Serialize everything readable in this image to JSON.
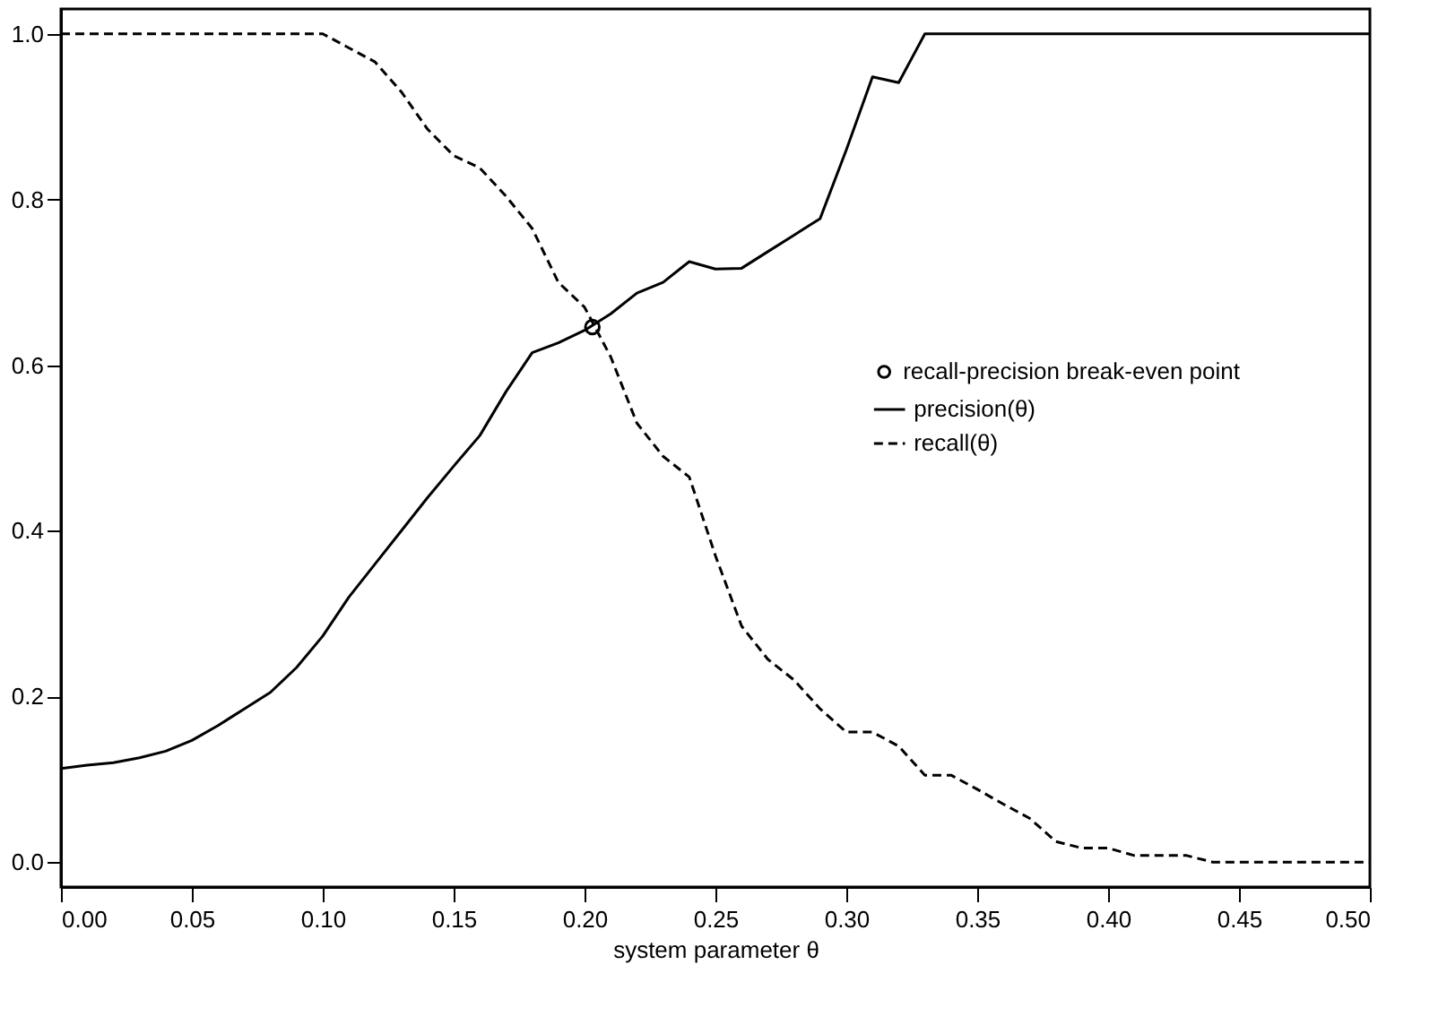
{
  "chart_data": {
    "type": "line",
    "xlabel": "system parameter θ",
    "xlim": [
      0,
      0.5
    ],
    "ylim": [
      -0.03,
      1.03
    ],
    "xticks": [
      {
        "value": 0,
        "label": "0.00"
      },
      {
        "value": 0.05,
        "label": "0.05"
      },
      {
        "value": 0.1,
        "label": "0.10"
      },
      {
        "value": 0.15,
        "label": "0.15"
      },
      {
        "value": 0.2,
        "label": "0.20"
      },
      {
        "value": 0.25,
        "label": "0.25"
      },
      {
        "value": 0.3,
        "label": "0.30"
      },
      {
        "value": 0.35,
        "label": "0.35"
      },
      {
        "value": 0.4,
        "label": "0.40"
      },
      {
        "value": 0.45,
        "label": "0.45"
      },
      {
        "value": 0.5,
        "label": "0.50"
      }
    ],
    "yticks": [
      {
        "value": 0,
        "label": "0.0"
      },
      {
        "value": 0.2,
        "label": "0.2"
      },
      {
        "value": 0.4,
        "label": "0.4"
      },
      {
        "value": 0.6,
        "label": "0.6"
      },
      {
        "value": 0.8,
        "label": "0.8"
      },
      {
        "value": 1,
        "label": "1.0"
      }
    ],
    "grid": false,
    "legend": "right",
    "marker": "none",
    "series": [
      {
        "name": "recall-precision break-even point",
        "type": "scatter",
        "marker": "circle",
        "color": "#000000",
        "x": [
          0.203
        ],
        "values": [
          0.646
        ]
      },
      {
        "name": "precision(θ)",
        "line_style": "solid",
        "color": "#000000",
        "x": [
          0,
          0.01,
          0.02,
          0.03,
          0.04,
          0.05,
          0.06,
          0.07,
          0.08,
          0.09,
          0.1,
          0.11,
          0.12,
          0.13,
          0.14,
          0.15,
          0.16,
          0.17,
          0.18,
          0.19,
          0.2,
          0.21,
          0.22,
          0.23,
          0.24,
          0.25,
          0.26,
          0.27,
          0.28,
          0.29,
          0.3,
          0.31,
          0.32,
          0.33,
          0.5
        ],
        "values": [
          0.113,
          0.117,
          0.12,
          0.126,
          0.134,
          0.147,
          0.165,
          0.185,
          0.205,
          0.235,
          0.273,
          0.32,
          0.36,
          0.4,
          0.44,
          0.478,
          0.515,
          0.568,
          0.615,
          0.627,
          0.642,
          0.662,
          0.687,
          0.7,
          0.725,
          0.716,
          0.717,
          0.737,
          0.757,
          0.777,
          0.86,
          0.948,
          0.941,
          1.0,
          1.0
        ]
      },
      {
        "name": "recall(θ)",
        "line_style": "dashed",
        "color": "#000000",
        "x": [
          0,
          0.1,
          0.11,
          0.12,
          0.13,
          0.14,
          0.15,
          0.16,
          0.17,
          0.18,
          0.19,
          0.2,
          0.21,
          0.22,
          0.23,
          0.24,
          0.25,
          0.26,
          0.27,
          0.28,
          0.29,
          0.3,
          0.31,
          0.32,
          0.33,
          0.34,
          0.35,
          0.36,
          0.37,
          0.38,
          0.39,
          0.4,
          0.41,
          0.42,
          0.43,
          0.44,
          0.5
        ],
        "values": [
          1.0,
          1.0,
          0.983,
          0.966,
          0.93,
          0.885,
          0.853,
          0.838,
          0.804,
          0.765,
          0.7,
          0.67,
          0.61,
          0.53,
          0.49,
          0.465,
          0.37,
          0.285,
          0.245,
          0.22,
          0.185,
          0.157,
          0.157,
          0.14,
          0.105,
          0.105,
          0.088,
          0.07,
          0.053,
          0.025,
          0.017,
          0.017,
          0.008,
          0.008,
          0.008,
          0,
          0
        ]
      }
    ]
  }
}
